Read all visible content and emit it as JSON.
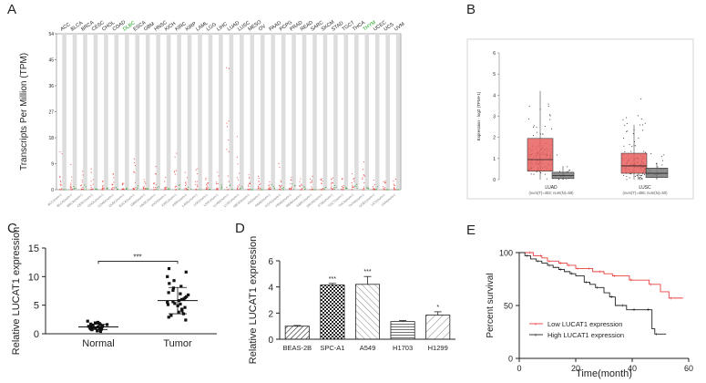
{
  "panels": {
    "A": "A",
    "B": "B",
    "C": "C",
    "D": "D",
    "E": "E"
  },
  "chart_data": [
    {
      "id": "A",
      "type": "scatter",
      "ylabel": "Transcripts Per Million (TPM)",
      "ylim": [
        0,
        54
      ],
      "yticks": [
        0,
        9,
        18,
        27,
        36,
        45,
        54
      ],
      "tick_labels": [
        "0",
        "9",
        "18",
        "27",
        "36",
        "45",
        "54"
      ],
      "cancers": [
        "ACC",
        "BLCA",
        "BRCA",
        "CESC",
        "CHOL",
        "COAD",
        "DLBC",
        "ESCA",
        "GBM",
        "HNSC",
        "KICH",
        "KIRC",
        "KIRP",
        "LAML",
        "LGG",
        "LIHC",
        "LUAD",
        "LUSC",
        "MESO",
        "OV",
        "PAAD",
        "PCPG",
        "PRAD",
        "READ",
        "SARC",
        "SKCM",
        "STAD",
        "TGCT",
        "THCA",
        "THYM",
        "UCEC",
        "UCS",
        "UVM"
      ],
      "highlight": [
        "DLBC",
        "THYM"
      ],
      "highlight_color": "#1aa11a",
      "tumor_max": [
        15,
        10,
        8,
        12,
        4,
        6,
        3,
        12,
        5,
        9,
        6,
        14,
        10,
        8,
        4,
        8,
        45,
        20,
        8,
        5,
        6,
        10,
        5,
        4,
        6,
        4,
        5,
        4,
        8,
        10,
        5,
        3,
        4
      ],
      "normal_max": [
        0,
        2,
        2,
        1,
        1,
        2,
        1,
        2,
        1,
        2,
        1,
        2,
        2,
        0,
        1,
        2,
        3,
        3,
        0,
        0,
        2,
        1,
        2,
        1,
        0,
        1,
        2,
        1,
        2,
        1,
        1,
        0,
        0
      ]
    },
    {
      "id": "B",
      "type": "box",
      "ylabel": "Expression - log2 (TPM+1)",
      "ylim": [
        0,
        6
      ],
      "ticks": [
        0,
        1,
        2,
        3,
        4,
        5,
        6
      ],
      "tick_labels": [
        "0",
        "1",
        "2",
        "3",
        "4",
        "5",
        "6"
      ],
      "groups": [
        {
          "name": "LUAD",
          "label": "(num(T)=483; num(N)=59)",
          "tumor": {
            "min": 0,
            "q1": 0.4,
            "median": 0.95,
            "q3": 1.95,
            "max": 4.2
          },
          "normal": {
            "min": 0,
            "q1": 0.05,
            "median": 0.2,
            "q3": 0.35,
            "max": 0.65
          }
        },
        {
          "name": "LUSC",
          "label": "(num(T)=486; num(N)=50)",
          "tumor": {
            "min": 0,
            "q1": 0.3,
            "median": 0.65,
            "q3": 1.25,
            "max": 2.6
          },
          "normal": {
            "min": 0,
            "q1": 0.1,
            "median": 0.3,
            "q3": 0.55,
            "max": 0.8
          }
        }
      ],
      "tumor_color": "#e8605f",
      "normal_color": "#7b7b7b"
    },
    {
      "id": "C",
      "type": "scatter",
      "ylabel": "Relative LUCAT1 expression",
      "categories": [
        "Normal",
        "Tumor"
      ],
      "ylim": [
        0,
        15
      ],
      "ticks": [
        0,
        5,
        10,
        15
      ],
      "tick_labels": [
        "0",
        "5",
        "10",
        "15"
      ],
      "series": [
        {
          "name": "Normal",
          "mean": 1.2,
          "sd": 0.45,
          "values": [
            0.4,
            0.6,
            0.7,
            0.8,
            0.8,
            0.9,
            1.0,
            1.0,
            1.0,
            1.1,
            1.1,
            1.2,
            1.2,
            1.2,
            1.3,
            1.3,
            1.4,
            1.4,
            1.5,
            1.5,
            1.6,
            1.7,
            1.8,
            1.9,
            2.0,
            2.2,
            0.5,
            0.9,
            1.3,
            1.6
          ]
        },
        {
          "name": "Tumor",
          "mean": 5.8,
          "sd": 2.3,
          "values": [
            2.4,
            2.9,
            3.2,
            3.5,
            3.8,
            4.0,
            4.3,
            4.6,
            4.9,
            5.1,
            5.3,
            5.5,
            5.6,
            5.8,
            6.0,
            6.1,
            6.3,
            6.5,
            6.8,
            7.0,
            7.2,
            7.6,
            8.0,
            8.3,
            8.8,
            9.3,
            10.0,
            10.8,
            11.4,
            5.2
          ]
        }
      ],
      "significance": "***"
    },
    {
      "id": "D",
      "type": "bar",
      "ylabel": "Relative LUCAT1 expression",
      "categories": [
        "BEAS-2B",
        "SPC-A1",
        "A549",
        "H1703",
        "H1299"
      ],
      "values": [
        1.0,
        4.15,
        4.2,
        1.35,
        1.85
      ],
      "errors": [
        0.05,
        0.12,
        0.6,
        0.08,
        0.25
      ],
      "significance": [
        "",
        "***",
        "***",
        "",
        "*"
      ],
      "ylim": [
        0,
        6
      ],
      "ticks": [
        0,
        2,
        4,
        6
      ],
      "tick_labels": [
        "0",
        "2",
        "4",
        "6"
      ]
    },
    {
      "id": "E",
      "type": "line",
      "xlabel": "Time(month)",
      "ylabel": "Percent survival",
      "xlim": [
        0,
        60
      ],
      "ylim": [
        0,
        100
      ],
      "xticks": [
        0,
        20,
        40,
        60
      ],
      "x_tick_labels": [
        "0",
        "20",
        "40",
        "60"
      ],
      "yticks": [
        0,
        50,
        100
      ],
      "y_tick_labels": [
        "0",
        "50",
        "100"
      ],
      "series": [
        {
          "name": "Low LUCAT1 expression",
          "color": "#e8403f",
          "x": [
            0,
            3,
            5,
            7,
            8,
            10,
            12,
            14,
            15,
            17,
            19,
            20,
            22,
            24,
            26,
            28,
            30,
            33,
            36,
            39,
            42,
            46,
            50,
            53,
            58
          ],
          "y": [
            100,
            100,
            97,
            97,
            95,
            92,
            92,
            90,
            90,
            88,
            88,
            85,
            85,
            85,
            82,
            82,
            80,
            78,
            78,
            74,
            74,
            70,
            63,
            57,
            57
          ]
        },
        {
          "name": "High LUCAT1 expression",
          "color": "#222222",
          "x": [
            0,
            2,
            4,
            6,
            8,
            10,
            12,
            14,
            16,
            18,
            20,
            23,
            25,
            27,
            30,
            32,
            34,
            36,
            38,
            40,
            42,
            45,
            47,
            48,
            52
          ],
          "y": [
            100,
            97,
            94,
            92,
            90,
            88,
            86,
            84,
            82,
            80,
            78,
            72,
            70,
            67,
            62,
            58,
            50,
            50,
            46,
            46,
            46,
            46,
            28,
            23,
            23
          ]
        }
      ]
    }
  ]
}
